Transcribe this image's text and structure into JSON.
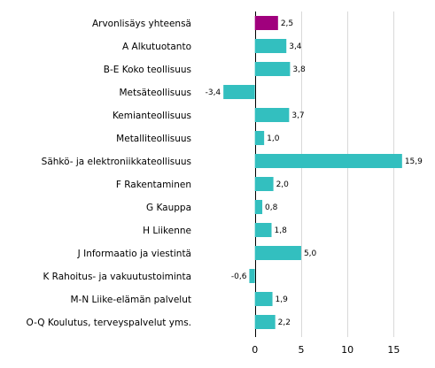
{
  "chart_data": {
    "type": "bar",
    "orientation": "horizontal",
    "categories": [
      "Arvonlisäys yhteensä",
      "A Alkutuotanto",
      "B-E Koko teollisuus",
      "Metsäteollisuus",
      "Kemianteollisuus",
      "Metalliteollisuus",
      "Sähkö- ja elektroniikkateollisuus",
      "F Rakentaminen",
      "G Kauppa",
      "H Liikenne",
      "J Informaatio ja viestintä",
      "K Rahoitus- ja vakuutustoiminta",
      "M-N Liike-elämän palvelut",
      "O-Q Koulutus, terveyspalvelut yms."
    ],
    "values": [
      2.5,
      3.4,
      3.8,
      -3.4,
      3.7,
      1.0,
      15.9,
      2.0,
      0.8,
      1.8,
      5.0,
      -0.6,
      1.9,
      2.2
    ],
    "value_labels": [
      "2,5",
      "3,4",
      "3,8",
      "-3,4",
      "3,7",
      "1,0",
      "15,9",
      "2,0",
      "0,8",
      "1,8",
      "5,0",
      "-0,6",
      "1,9",
      "2,2"
    ],
    "xlim": [
      -6,
      18.5
    ],
    "xticks": [
      0,
      5,
      10,
      15
    ],
    "xtick_labels": [
      "0",
      "5",
      "10",
      "15"
    ],
    "grid": true,
    "colors": {
      "highlight": "#a0007d",
      "bar": "#33bfbf",
      "grid": "#d9d9d9"
    },
    "highlight_index": 0
  }
}
